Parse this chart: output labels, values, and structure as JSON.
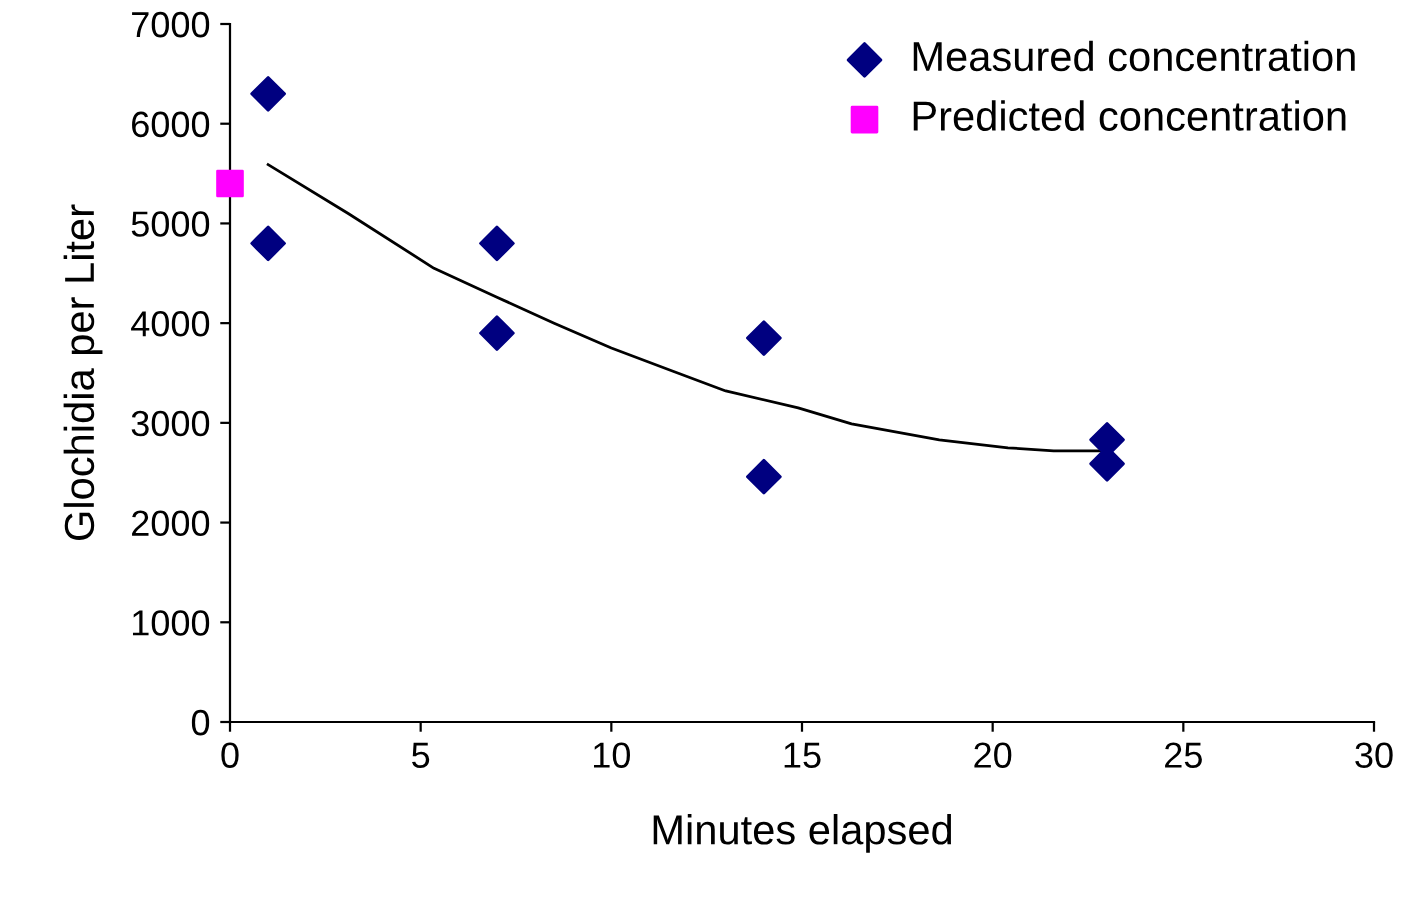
{
  "chart_data": {
    "type": "scatter",
    "xlabel": "Minutes elapsed",
    "ylabel": "Glochidia per Liter",
    "xlim": [
      0,
      30
    ],
    "xticks": [
      0,
      5,
      10,
      15,
      20,
      25,
      30
    ],
    "ylim": [
      0,
      7000
    ],
    "yticks": [
      0,
      1000,
      2000,
      3000,
      4000,
      5000,
      6000,
      7000
    ],
    "grid": false,
    "legend": "top right",
    "series": [
      {
        "name": "Measured concentration",
        "color": "#000080",
        "marker": "diamond",
        "x": [
          1,
          1,
          7,
          7,
          14,
          14,
          23,
          23
        ],
        "values": [
          6300,
          4800,
          4800,
          3900,
          3850,
          2460,
          2830,
          2590
        ]
      },
      {
        "name": "Predicted concentration",
        "color": "#ff00ff",
        "marker": "square",
        "x": [
          0
        ],
        "values": [
          5400
        ]
      },
      {
        "type": "line",
        "color": "#000000",
        "marker": "none",
        "x": [
          1,
          3.1,
          5.35,
          7,
          8.5,
          10,
          11.6,
          13,
          14.9,
          16.3,
          18.6,
          20.4,
          21.6,
          23
        ],
        "values": [
          5590,
          5100,
          4550,
          4260,
          4000,
          3750,
          3520,
          3320,
          3150,
          2990,
          2830,
          2750,
          2720,
          2720
        ]
      }
    ]
  }
}
